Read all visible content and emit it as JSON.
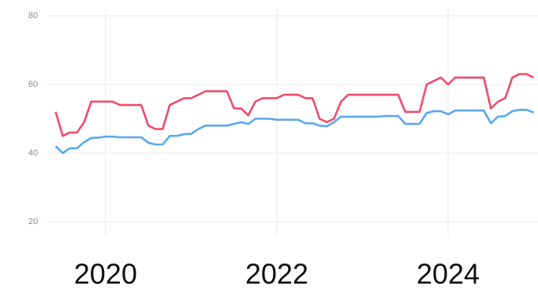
{
  "chart_data": {
    "type": "line",
    "x": [
      2019.417,
      2019.5,
      2019.583,
      2019.667,
      2019.75,
      2019.833,
      2019.917,
      2020,
      2020.083,
      2020.167,
      2020.25,
      2020.333,
      2020.417,
      2020.5,
      2020.583,
      2020.667,
      2020.75,
      2020.833,
      2020.917,
      2021,
      2021.083,
      2021.167,
      2021.25,
      2021.333,
      2021.417,
      2021.5,
      2021.583,
      2021.667,
      2021.75,
      2021.833,
      2021.917,
      2022,
      2022.083,
      2022.167,
      2022.25,
      2022.333,
      2022.417,
      2022.5,
      2022.583,
      2022.667,
      2022.75,
      2022.833,
      2022.917,
      2023,
      2023.083,
      2023.167,
      2023.25,
      2023.333,
      2023.417,
      2023.5,
      2023.583,
      2023.667,
      2023.75,
      2023.833,
      2023.917,
      2024,
      2024.083,
      2024.167,
      2024.25,
      2024.333,
      2024.417,
      2024.5,
      2024.583,
      2024.667,
      2024.75,
      2024.833,
      2024.917,
      2025
    ],
    "series": [
      {
        "color": "#f24b6a",
        "values": [
          52,
          45,
          46,
          46,
          49,
          55,
          55,
          55,
          55,
          54,
          54,
          54,
          54,
          48,
          47,
          47,
          54,
          55,
          56,
          56,
          57,
          58,
          58,
          58,
          58,
          53,
          53,
          51,
          55,
          56,
          56,
          56,
          57,
          57,
          57,
          56,
          56,
          50,
          49,
          50,
          55,
          57,
          57,
          57,
          57,
          57,
          57,
          57,
          57,
          52,
          52,
          52,
          60,
          61,
          62,
          60,
          62,
          62,
          62,
          62,
          62,
          53,
          55,
          56,
          62,
          63,
          63,
          62
        ]
      },
      {
        "color": "#5aa8ef",
        "values": [
          42,
          40,
          41.4,
          41.4,
          43.2,
          44.4,
          44.5,
          44.8,
          44.8,
          44.6,
          44.6,
          44.6,
          44.6,
          43,
          42.5,
          42.5,
          45,
          45,
          45.5,
          45.6,
          47,
          48,
          48,
          48,
          48,
          48.5,
          49,
          48.5,
          50,
          50,
          50,
          49.7,
          49.7,
          49.7,
          49.7,
          48.7,
          48.7,
          48,
          47.8,
          49,
          50.6,
          50.6,
          50.6,
          50.6,
          50.6,
          50.6,
          50.8,
          50.8,
          50.8,
          48.5,
          48.5,
          48.5,
          51.7,
          52.2,
          52.2,
          51.3,
          52.4,
          52.4,
          52.4,
          52.4,
          52.4,
          48.7,
          50.6,
          50.8,
          52.2,
          52.6,
          52.6,
          51.8
        ]
      }
    ],
    "xlim": [
      2019.32,
      2025.05
    ],
    "xticks": [
      2020,
      2022,
      2024
    ],
    "ylim": [
      16,
      84
    ],
    "yticks": [
      20,
      40,
      60,
      80
    ],
    "grid": true
  }
}
